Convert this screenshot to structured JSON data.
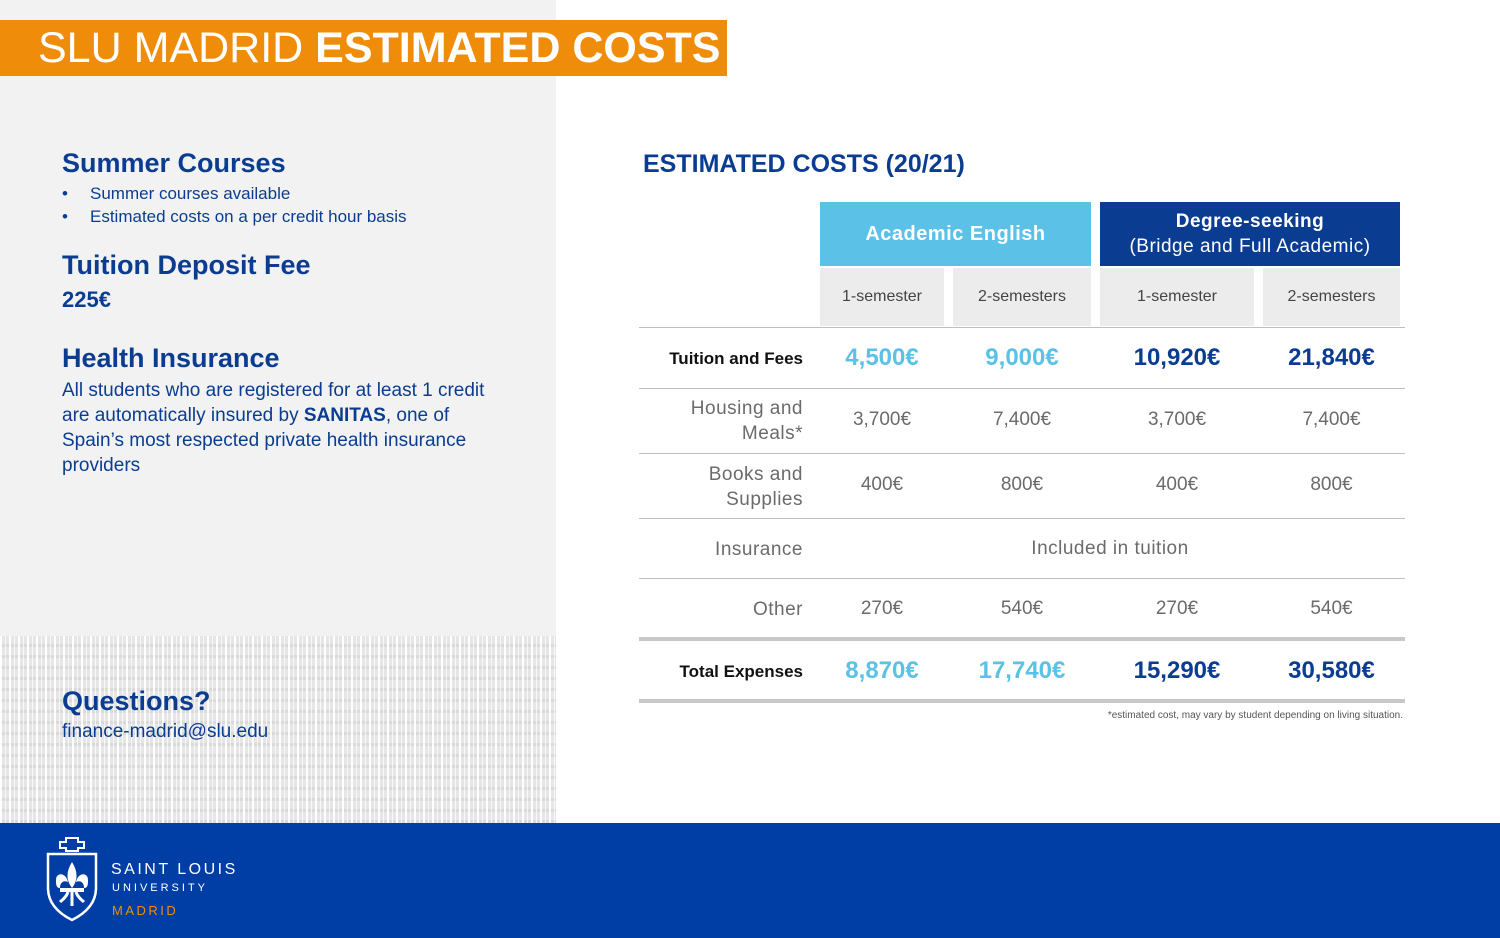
{
  "title": {
    "light": "SLU MADRID ",
    "bold": "ESTIMATED COSTS"
  },
  "summer": {
    "heading": "Summer Courses",
    "bullets": [
      "Summer courses available",
      "Estimated costs on a per credit hour basis"
    ]
  },
  "deposit": {
    "heading": "Tuition Deposit Fee",
    "value": "225€"
  },
  "insurance": {
    "heading": "Health Insurance",
    "text_before": "All students who are registered for at least 1 credit are automatically insured by ",
    "text_bold": "SANITAS",
    "text_after": ", one of Spain’s most respected private health insurance providers"
  },
  "questions": {
    "heading": "Questions?",
    "email": "finance-madrid@slu.edu"
  },
  "table": {
    "title": "ESTIMATED COSTS (20/21)",
    "group_academic": "Academic English",
    "group_degree_line1": "Degree-seeking",
    "group_degree_line2": "(Bridge and Full Academic)",
    "subheaders": [
      "1-semester",
      "2-semesters",
      "1-semester",
      "2-semesters"
    ],
    "rows": [
      {
        "label": "Tuition and Fees",
        "values": [
          "4,500€",
          "9,000€",
          "10,920€",
          "21,840€"
        ]
      },
      {
        "label_line1": "Housing and",
        "label_line2": "Meals*",
        "values": [
          "3,700€",
          "7,400€",
          "3,700€",
          "7,400€"
        ]
      },
      {
        "label_line1": "Books and",
        "label_line2": "Supplies",
        "values": [
          "400€",
          "800€",
          "400€",
          "800€"
        ]
      },
      {
        "label": "Insurance",
        "span_value": "Included in tuition"
      },
      {
        "label": "Other",
        "values": [
          "270€",
          "540€",
          "270€",
          "540€"
        ]
      },
      {
        "label": "Total Expenses",
        "values": [
          "8,870€",
          "17,740€",
          "15,290€",
          "30,580€"
        ]
      }
    ],
    "footnote": "*estimated cost, may vary by student depending on living situation."
  },
  "footer": {
    "name": "SAINT LOUIS",
    "university": "UNIVERSITY",
    "campus": "MADRID"
  },
  "colors": {
    "orange": "#ef8d0b",
    "navy": "#0a3d91",
    "light_blue": "#5bc1e6",
    "footer_blue": "#003da5"
  }
}
